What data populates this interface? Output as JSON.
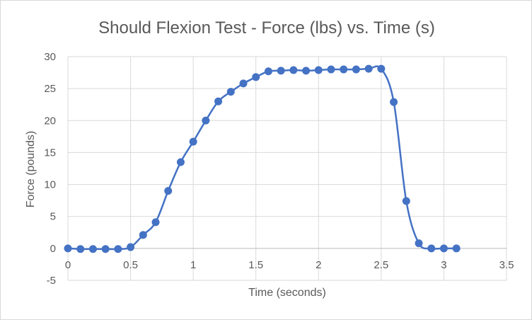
{
  "chart_data": {
    "type": "scatter",
    "title": "Should Flexion Test - Force (lbs) vs. Time (s)",
    "xlabel": "Time (seconds)",
    "ylabel": "Force (pounds)",
    "xlim": [
      0,
      3.5
    ],
    "ylim": [
      -5,
      30
    ],
    "x_ticks": [
      0,
      0.5,
      1,
      1.5,
      2,
      2.5,
      3,
      3.5
    ],
    "y_ticks": [
      -5,
      0,
      5,
      10,
      15,
      20,
      25,
      30
    ],
    "x_tick_labels": [
      "0",
      "0.5",
      "1",
      "1.5",
      "2",
      "2.5",
      "3",
      "3.5"
    ],
    "y_tick_labels": [
      "-5",
      "0",
      "5",
      "10",
      "15",
      "20",
      "25",
      "30"
    ],
    "grid": true,
    "smooth_line": true,
    "markers": true,
    "legend": "none",
    "color": "#4472c4",
    "series": [
      {
        "x": [
          0,
          0.1,
          0.2,
          0.3,
          0.4,
          0.5,
          0.6,
          0.7,
          0.8,
          0.9,
          1.0,
          1.1,
          1.2,
          1.3,
          1.4,
          1.5,
          1.6,
          1.7,
          1.8,
          1.9,
          2.0,
          2.1,
          2.2,
          2.3,
          2.4,
          2.5,
          2.6,
          2.7,
          2.8,
          2.9,
          3.0,
          3.1
        ],
        "y": [
          0,
          -0.1,
          -0.1,
          -0.1,
          -0.1,
          0.2,
          2.1,
          4.1,
          9.0,
          13.5,
          16.7,
          20.0,
          23.0,
          24.5,
          25.8,
          26.8,
          27.7,
          27.8,
          27.9,
          27.8,
          27.9,
          28.0,
          28.0,
          28.0,
          28.1,
          28.1,
          22.9,
          7.4,
          0.8,
          0.0,
          0.0,
          0.0
        ]
      }
    ]
  }
}
